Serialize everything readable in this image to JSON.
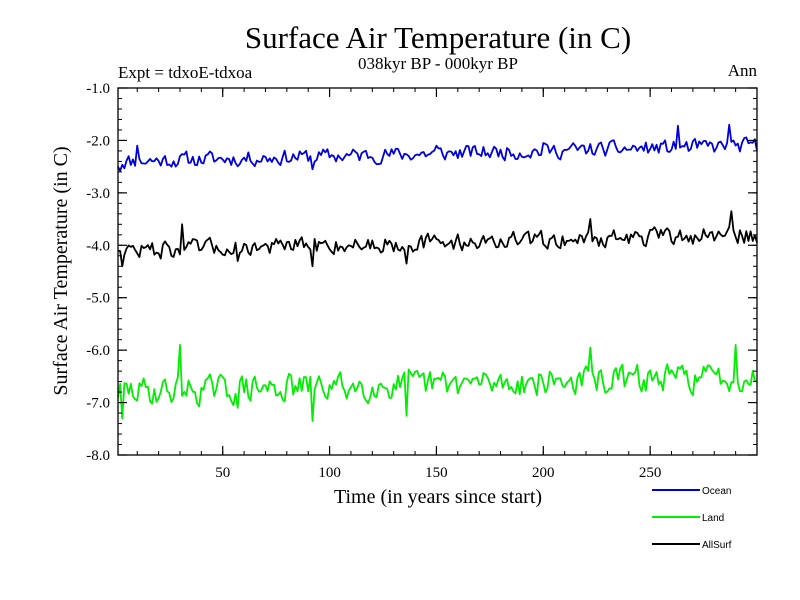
{
  "chart_data": {
    "type": "line",
    "title": "Surface Air Temperature (in C)",
    "subtitle": "038kyr BP - 000kyr BP",
    "left_label": "Expt = tdxoE-tdxoa",
    "right_label": "Ann",
    "xlabel": "Time (in years since start)",
    "ylabel": "Surface Air Temperature (in C)",
    "xlim": [
      1,
      300
    ],
    "ylim": [
      -8.0,
      -1.0
    ],
    "xticks": [
      50,
      100,
      150,
      200,
      250
    ],
    "xtick_labels": [
      "50",
      "100",
      "150",
      "200",
      "250"
    ],
    "yticks": [
      -1.0,
      -2.0,
      -3.0,
      -4.0,
      -5.0,
      -6.0,
      -7.0,
      -8.0
    ],
    "ytick_labels": [
      "-1.0",
      "-2.0",
      "-3.0",
      "-4.0",
      "-5.0",
      "-6.0",
      "-7.0",
      "-8.0"
    ],
    "grid": false,
    "legend_position": "bottom-right",
    "series": [
      {
        "name": "Ocean",
        "color": "#0000dd",
        "base": -2.25,
        "trend": 0.001,
        "amp": 0.13,
        "seed": 11,
        "key_points": [
          [
            1,
            -2.5
          ],
          [
            2,
            -2.58
          ],
          [
            10,
            -2.1
          ],
          [
            30,
            -2.3
          ],
          [
            58,
            -2.45
          ],
          [
            92,
            -2.55
          ],
          [
            150,
            -2.1
          ],
          [
            200,
            -2.05
          ],
          [
            263,
            -1.72
          ],
          [
            287,
            -1.7
          ],
          [
            300,
            -2.2
          ]
        ]
      },
      {
        "name": "Land",
        "color": "#00ee00",
        "base": -6.65,
        "trend": 0.001,
        "amp": 0.24,
        "seed": 29,
        "key_points": [
          [
            1,
            -6.9
          ],
          [
            3,
            -7.3
          ],
          [
            30,
            -5.9
          ],
          [
            57,
            -7.1
          ],
          [
            92,
            -7.35
          ],
          [
            136,
            -7.25
          ],
          [
            222,
            -5.95
          ],
          [
            290,
            -5.9
          ],
          [
            300,
            -6.6
          ]
        ]
      },
      {
        "name": "AllSurf",
        "color": "#000000",
        "base": -3.95,
        "trend": 0.001,
        "amp": 0.15,
        "seed": 47,
        "key_points": [
          [
            1,
            -4.1
          ],
          [
            3,
            -4.4
          ],
          [
            31,
            -3.6
          ],
          [
            57,
            -4.3
          ],
          [
            92,
            -4.4
          ],
          [
            136,
            -4.35
          ],
          [
            222,
            -3.5
          ],
          [
            288,
            -3.35
          ],
          [
            300,
            -3.95
          ]
        ]
      }
    ]
  }
}
